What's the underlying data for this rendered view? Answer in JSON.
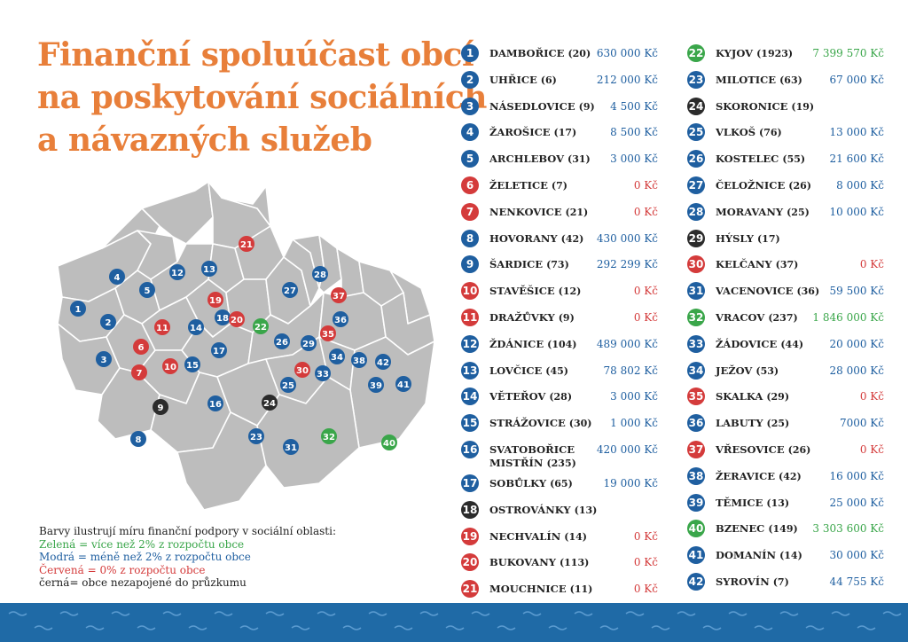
{
  "title": {
    "line1": "Finanční spoluúčast obcí",
    "line2": "na poskytování sociálních",
    "line3": "a návazných služeb"
  },
  "legend": {
    "heading": "Barvy ilustrují míru finanční podpory v sociální oblasti:",
    "green": "Zelená = více než 2% z rozpočtu obce",
    "blue": "Modrá = méně než 2% z rozpočtu obce",
    "red": "Červená = 0% z rozpočtu obce",
    "black": "černá= obce nezapojené do průzkumu"
  },
  "colors": {
    "green": "#3aa64a",
    "blue": "#1f5fa0",
    "red": "#d43b3b",
    "black": "#2b2b2b",
    "title": "#e87f3a",
    "map_fill": "#bdbdbd"
  },
  "municipalities": [
    {
      "n": "1",
      "name": "DAMBOŘICE",
      "pop": "(20)",
      "amount": "630 000 Kč",
      "status": "blue"
    },
    {
      "n": "2",
      "name": "UHŘICE",
      "pop": "(6)",
      "amount": "212 000 Kč",
      "status": "blue"
    },
    {
      "n": "3",
      "name": "NÁSEDLOVICE",
      "pop": "(9)",
      "amount": "4 500 Kč",
      "status": "blue"
    },
    {
      "n": "4",
      "name": "ŽAROŠICE",
      "pop": "(17)",
      "amount": "8 500 Kč",
      "status": "blue"
    },
    {
      "n": "5",
      "name": "ARCHLEBOV",
      "pop": "(31)",
      "amount": "3 000 Kč",
      "status": "blue"
    },
    {
      "n": "6",
      "name": "ŽELETICE",
      "pop": "(7)",
      "amount": "0 Kč",
      "status": "red"
    },
    {
      "n": "7",
      "name": "NENKOVICE",
      "pop": "(21)",
      "amount": "0 Kč",
      "status": "red"
    },
    {
      "n": "8",
      "name": "HOVORANY",
      "pop": "(42)",
      "amount": "430 000 Kč",
      "status": "blue"
    },
    {
      "n": "9",
      "name": "ŠARDICE",
      "pop": "(73)",
      "amount": "292 299 Kč",
      "status": "blue"
    },
    {
      "n": "10",
      "name": "STAVĚŠICE",
      "pop": "(12)",
      "amount": "0 Kč",
      "status": "red"
    },
    {
      "n": "11",
      "name": "DRAŽŮVKY",
      "pop": "(9)",
      "amount": "0 Kč",
      "status": "red"
    },
    {
      "n": "12",
      "name": "ŽDÁNICE",
      "pop": "(104)",
      "amount": "489 000 Kč",
      "status": "blue"
    },
    {
      "n": "13",
      "name": "LOVČICE",
      "pop": "(45)",
      "amount": "78 802 Kč",
      "status": "blue"
    },
    {
      "n": "14",
      "name": "VĚTEŘOV",
      "pop": "(28)",
      "amount": "3 000 Kč",
      "status": "blue"
    },
    {
      "n": "15",
      "name": "STRÁŽOVICE",
      "pop": "(30)",
      "amount": "1 000 Kč",
      "status": "blue"
    },
    {
      "n": "16",
      "name": "SVATOBOŘICE MISTŘÍN",
      "pop": "(235)",
      "amount": "420 000 Kč",
      "status": "blue",
      "tall": true
    },
    {
      "n": "17",
      "name": "SOBŮLKY",
      "pop": "(65)",
      "amount": "19 000 Kč",
      "status": "blue"
    },
    {
      "n": "18",
      "name": "OSTROVÁNKY",
      "pop": "(13)",
      "amount": "",
      "status": "black"
    },
    {
      "n": "19",
      "name": "NECHVALÍN",
      "pop": "(14)",
      "amount": "0 Kč",
      "status": "red"
    },
    {
      "n": "20",
      "name": "BUKOVANY",
      "pop": "(113)",
      "amount": "0 Kč",
      "status": "red"
    },
    {
      "n": "21",
      "name": "MOUCHNICE",
      "pop": "(11)",
      "amount": "0 Kč",
      "status": "red"
    },
    {
      "n": "22",
      "name": "KYJOV",
      "pop": "(1923)",
      "amount": "7 399 570 Kč",
      "status": "green"
    },
    {
      "n": "23",
      "name": "MILOTICE",
      "pop": "(63)",
      "amount": "67 000 Kč",
      "status": "blue"
    },
    {
      "n": "24",
      "name": "SKORONICE",
      "pop": "(19)",
      "amount": "",
      "status": "black"
    },
    {
      "n": "25",
      "name": "VLKOŠ",
      "pop": "(76)",
      "amount": "13 000 Kč",
      "status": "blue"
    },
    {
      "n": "26",
      "name": "KOSTELEC",
      "pop": "(55)",
      "amount": "21 600 Kč",
      "status": "blue"
    },
    {
      "n": "27",
      "name": "ČELOŽNICE",
      "pop": "(26)",
      "amount": "8 000 Kč",
      "status": "blue"
    },
    {
      "n": "28",
      "name": "MORAVANY",
      "pop": "(25)",
      "amount": "10 000 Kč",
      "status": "blue"
    },
    {
      "n": "29",
      "name": "HÝSLY",
      "pop": "(17)",
      "amount": "",
      "status": "black"
    },
    {
      "n": "30",
      "name": "KELČANY",
      "pop": "(37)",
      "amount": "0 Kč",
      "status": "red"
    },
    {
      "n": "31",
      "name": "VACENOVICE",
      "pop": "(36)",
      "amount": "59 500 Kč",
      "status": "blue"
    },
    {
      "n": "32",
      "name": "VRACOV",
      "pop": "(237)",
      "amount": "1 846 000 Kč",
      "status": "green"
    },
    {
      "n": "33",
      "name": "ŽÁDOVICE",
      "pop": "(44)",
      "amount": "20 000 Kč",
      "status": "blue"
    },
    {
      "n": "34",
      "name": "JEŽOV",
      "pop": "(53)",
      "amount": "28 000 Kč",
      "status": "blue"
    },
    {
      "n": "35",
      "name": "SKALKA",
      "pop": "(29)",
      "amount": "0 Kč",
      "status": "red"
    },
    {
      "n": "36",
      "name": "LABUTY",
      "pop": "(25)",
      "amount": "7000 Kč",
      "status": "blue"
    },
    {
      "n": "37",
      "name": "VŘESOVICE",
      "pop": "(26)",
      "amount": "0 Kč",
      "status": "red"
    },
    {
      "n": "38",
      "name": "ŽERAVICE",
      "pop": "(42)",
      "amount": "16 000 Kč",
      "status": "blue"
    },
    {
      "n": "39",
      "name": "TĚMICE",
      "pop": "(13)",
      "amount": "25 000 Kč",
      "status": "blue"
    },
    {
      "n": "40",
      "name": "BZENEC",
      "pop": "(149)",
      "amount": "3 303 600 Kč",
      "status": "green"
    },
    {
      "n": "41",
      "name": "DOMANÍN",
      "pop": "(14)",
      "amount": "30 000 Kč",
      "status": "blue"
    },
    {
      "n": "42",
      "name": "SYROVÍN",
      "pop": "(7)",
      "amount": "44 755 Kč",
      "status": "blue"
    }
  ]
}
